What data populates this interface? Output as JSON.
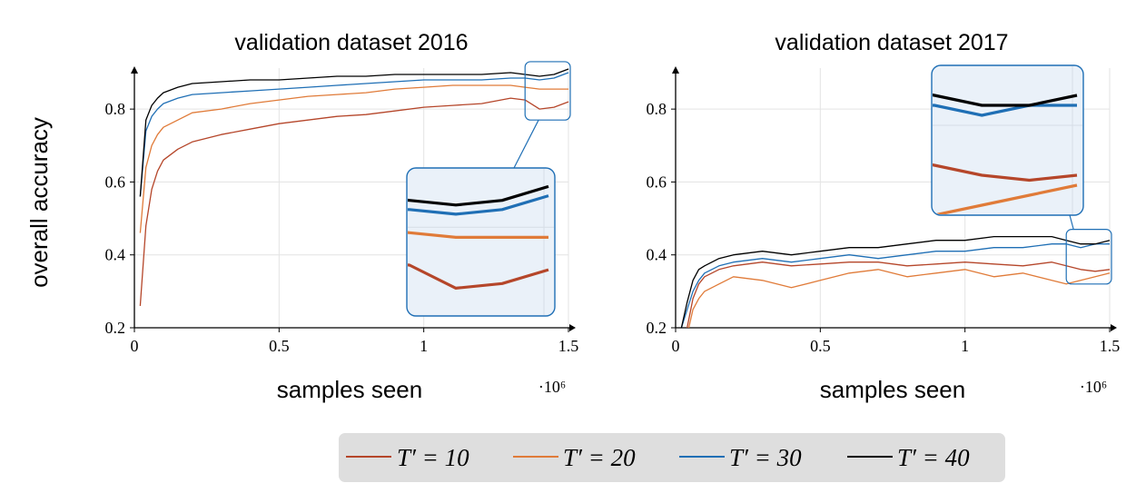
{
  "chart_data": [
    {
      "type": "line",
      "title": "validation dataset 2016",
      "xlabel": "samples seen",
      "ylabel": "overall accuracy",
      "x_multiplier": "·10⁶",
      "xlim": [
        0,
        1.5
      ],
      "ylim": [
        0.2,
        0.9
      ],
      "xticks": [
        0,
        0.5,
        1,
        1.5
      ],
      "xtick_labels": [
        "0",
        "0.5",
        "1",
        "1.5"
      ],
      "yticks": [
        0.2,
        0.4,
        0.6,
        0.8
      ],
      "ytick_labels": [
        "0.2",
        "0.4",
        "0.6",
        "0.8"
      ],
      "grid": true,
      "inset_zoom": {
        "x_range": [
          1.35,
          1.5
        ],
        "y_range": [
          0.77,
          0.93
        ]
      },
      "x": [
        0.02,
        0.04,
        0.06,
        0.08,
        0.1,
        0.15,
        0.2,
        0.3,
        0.4,
        0.5,
        0.6,
        0.7,
        0.8,
        0.9,
        1.0,
        1.1,
        1.2,
        1.3,
        1.35,
        1.4,
        1.45,
        1.5
      ],
      "series": [
        {
          "name": "T′ = 10",
          "color": "#b5462a",
          "values": [
            0.26,
            0.48,
            0.58,
            0.63,
            0.66,
            0.69,
            0.71,
            0.73,
            0.745,
            0.76,
            0.77,
            0.78,
            0.785,
            0.795,
            0.805,
            0.81,
            0.815,
            0.83,
            0.825,
            0.8,
            0.805,
            0.82
          ]
        },
        {
          "name": "T′ = 20",
          "color": "#e07b39",
          "values": [
            0.46,
            0.64,
            0.7,
            0.73,
            0.75,
            0.77,
            0.79,
            0.8,
            0.815,
            0.825,
            0.835,
            0.84,
            0.845,
            0.855,
            0.86,
            0.865,
            0.865,
            0.865,
            0.86,
            0.855,
            0.855,
            0.855
          ]
        },
        {
          "name": "T′ = 30",
          "color": "#1f6fb5",
          "values": [
            0.56,
            0.74,
            0.78,
            0.8,
            0.815,
            0.83,
            0.84,
            0.845,
            0.85,
            0.855,
            0.86,
            0.865,
            0.87,
            0.875,
            0.88,
            0.88,
            0.88,
            0.885,
            0.885,
            0.88,
            0.885,
            0.9
          ]
        },
        {
          "name": "T′ = 40",
          "color": "#000000",
          "values": [
            0.56,
            0.77,
            0.81,
            0.83,
            0.845,
            0.86,
            0.87,
            0.875,
            0.88,
            0.88,
            0.885,
            0.89,
            0.89,
            0.895,
            0.895,
            0.895,
            0.895,
            0.9,
            0.895,
            0.89,
            0.895,
            0.91
          ]
        }
      ]
    },
    {
      "type": "line",
      "title": "validation dataset 2017",
      "xlabel": "samples seen",
      "ylabel": "",
      "x_multiplier": "·10⁶",
      "xlim": [
        0,
        1.5
      ],
      "ylim": [
        0.2,
        0.9
      ],
      "xticks": [
        0,
        0.5,
        1,
        1.5
      ],
      "xtick_labels": [
        "0",
        "0.5",
        "1",
        "1.5"
      ],
      "yticks": [
        0.2,
        0.4,
        0.6,
        0.8
      ],
      "ytick_labels": [
        "0.2",
        "0.4",
        "0.6",
        "0.8"
      ],
      "grid": true,
      "inset_zoom": {
        "x_range": [
          1.35,
          1.5
        ],
        "y_range": [
          0.32,
          0.47
        ]
      },
      "x": [
        0.02,
        0.04,
        0.06,
        0.08,
        0.1,
        0.15,
        0.2,
        0.3,
        0.4,
        0.5,
        0.6,
        0.7,
        0.8,
        0.9,
        1.0,
        1.1,
        1.2,
        1.3,
        1.35,
        1.4,
        1.45,
        1.5
      ],
      "series": [
        {
          "name": "T′ = 10",
          "color": "#b5462a",
          "values": [
            0.15,
            0.2,
            0.28,
            0.32,
            0.34,
            0.36,
            0.37,
            0.38,
            0.37,
            0.375,
            0.38,
            0.38,
            0.37,
            0.375,
            0.38,
            0.375,
            0.37,
            0.38,
            0.37,
            0.36,
            0.355,
            0.36
          ]
        },
        {
          "name": "T′ = 20",
          "color": "#e07b39",
          "values": [
            0.15,
            0.18,
            0.25,
            0.28,
            0.3,
            0.32,
            0.34,
            0.33,
            0.31,
            0.33,
            0.35,
            0.36,
            0.34,
            0.35,
            0.36,
            0.34,
            0.35,
            0.33,
            0.32,
            0.33,
            0.34,
            0.35
          ]
        },
        {
          "name": "T′ = 30",
          "color": "#1f6fb5",
          "values": [
            0.2,
            0.25,
            0.3,
            0.33,
            0.35,
            0.37,
            0.38,
            0.39,
            0.38,
            0.39,
            0.4,
            0.39,
            0.4,
            0.41,
            0.41,
            0.42,
            0.42,
            0.43,
            0.43,
            0.42,
            0.43,
            0.43
          ]
        },
        {
          "name": "T′ = 40",
          "color": "#000000",
          "values": [
            0.2,
            0.27,
            0.33,
            0.36,
            0.37,
            0.39,
            0.4,
            0.41,
            0.4,
            0.41,
            0.42,
            0.42,
            0.43,
            0.44,
            0.44,
            0.45,
            0.45,
            0.45,
            0.44,
            0.43,
            0.43,
            0.44
          ]
        }
      ]
    }
  ],
  "legend": {
    "placement": "bottom-center",
    "entries": [
      {
        "label": "T′ = 10",
        "color": "#b5462a"
      },
      {
        "label": "T′ = 20",
        "color": "#e07b39"
      },
      {
        "label": "T′ = 30",
        "color": "#1f6fb5"
      },
      {
        "label": "T′ = 40",
        "color": "#000000"
      }
    ]
  }
}
